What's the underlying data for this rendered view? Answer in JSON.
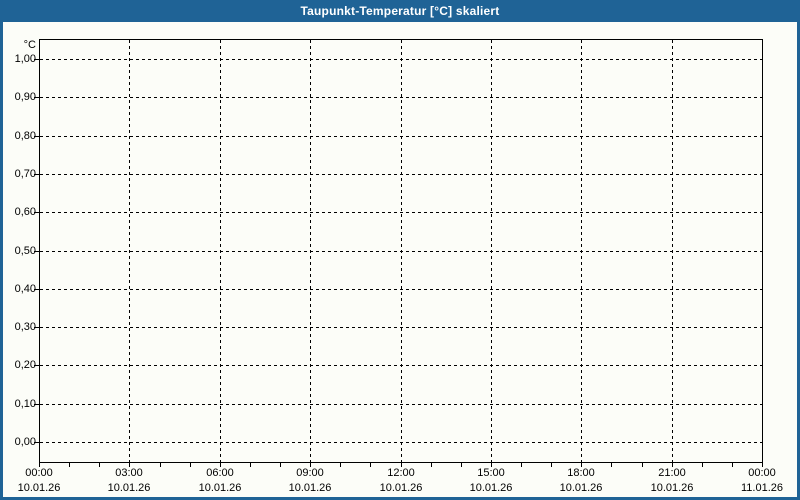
{
  "window": {
    "title": "Taupunkt-Temperatur [°C] skaliert",
    "titlebar_color": "#1F6396",
    "frame_color": "#1F6396",
    "title_text_color": "#FFFFFF",
    "background_color": "#FCFDF8",
    "axis_color": "#000000",
    "grid_color": "#000000",
    "label_color": "#000000"
  },
  "chart_data": {
    "type": "line",
    "title": "Taupunkt-Temperatur [°C] skaliert",
    "grid": "dashed",
    "legend": "none",
    "series": [],
    "y_axis": {
      "unit_label": "°C",
      "min": 0.0,
      "max": 1.0,
      "step": 0.1,
      "tick_labels": [
        "1,00",
        "0,90",
        "0,80",
        "0,70",
        "0,60",
        "0,50",
        "0,40",
        "0,30",
        "0,20",
        "0,10",
        "0,00"
      ],
      "display_range": [
        -0.05,
        1.05
      ]
    },
    "x_axis": {
      "major_tick_interval_hours": 3,
      "minor_tick_interval_hours": 1,
      "total_hours": 24,
      "labels": [
        {
          "time": "00:00",
          "date": "10.01.26"
        },
        {
          "time": "03:00",
          "date": "10.01.26"
        },
        {
          "time": "06:00",
          "date": "10.01.26"
        },
        {
          "time": "09:00",
          "date": "10.01.26"
        },
        {
          "time": "12:00",
          "date": "10.01.26"
        },
        {
          "time": "15:00",
          "date": "10.01.26"
        },
        {
          "time": "18:00",
          "date": "10.01.26"
        },
        {
          "time": "21:00",
          "date": "10.01.26"
        },
        {
          "time": "00:00",
          "date": "11.01.26"
        }
      ]
    }
  }
}
